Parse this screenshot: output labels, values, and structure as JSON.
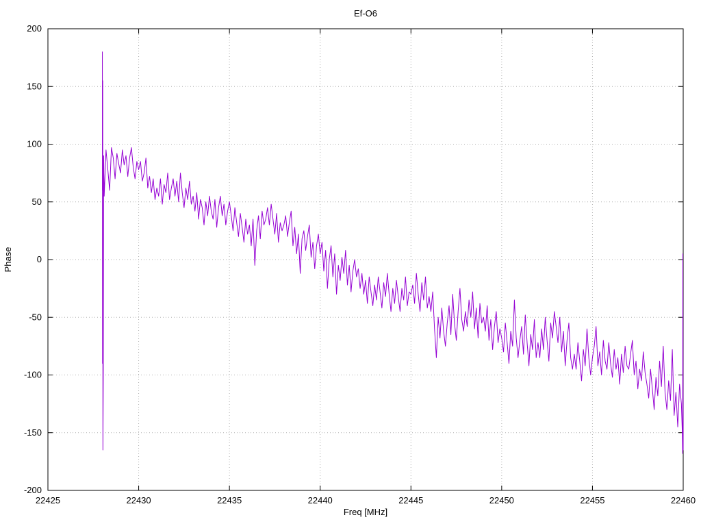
{
  "chart_data": {
    "type": "line",
    "title": "Ef-O6",
    "xlabel": "Freq [MHz]",
    "ylabel": "Phase",
    "xlim": [
      22425,
      22460
    ],
    "ylim": [
      -200,
      200
    ],
    "x_ticks": [
      22425,
      22430,
      22435,
      22440,
      22445,
      22450,
      22455,
      22460
    ],
    "y_ticks": [
      -200,
      -150,
      -100,
      -50,
      0,
      50,
      100,
      150,
      200
    ],
    "grid": true,
    "legend": "none",
    "line_color": "#9400d3",
    "spike_start": [
      [
        22428.0,
        60
      ],
      [
        22428.0,
        180
      ],
      [
        22428.01,
        -90
      ],
      [
        22428.02,
        155
      ],
      [
        22428.03,
        -165
      ],
      [
        22428.05,
        -95
      ],
      [
        22428.07,
        90
      ]
    ],
    "series": {
      "name": "phase",
      "x_start": 22428.1,
      "x_step": 0.1,
      "values": [
        55,
        95,
        78,
        60,
        97,
        88,
        70,
        92,
        83,
        75,
        95,
        82,
        90,
        72,
        88,
        97,
        80,
        70,
        85,
        78,
        85,
        68,
        75,
        88,
        62,
        72,
        58,
        70,
        52,
        62,
        55,
        70,
        48,
        65,
        58,
        75,
        52,
        62,
        70,
        55,
        68,
        50,
        75,
        58,
        45,
        62,
        52,
        68,
        48,
        55,
        42,
        58,
        35,
        52,
        45,
        30,
        50,
        38,
        55,
        42,
        35,
        52,
        28,
        45,
        55,
        38,
        48,
        30,
        42,
        50,
        38,
        25,
        45,
        32,
        20,
        40,
        28,
        15,
        35,
        22,
        30,
        12,
        35,
        -5,
        25,
        38,
        18,
        42,
        30,
        35,
        45,
        30,
        48,
        35,
        22,
        40,
        15,
        32,
        25,
        30,
        38,
        20,
        32,
        42,
        12,
        28,
        5,
        22,
        -12,
        18,
        25,
        8,
        20,
        30,
        2,
        15,
        -8,
        12,
        22,
        5,
        15,
        -10,
        8,
        -25,
        0,
        12,
        -15,
        5,
        -30,
        -5,
        -18,
        2,
        -12,
        8,
        -22,
        -5,
        -28,
        -10,
        0,
        -15,
        -8,
        -25,
        -12,
        -30,
        -18,
        -38,
        -15,
        -28,
        -40,
        -22,
        -35,
        -15,
        -28,
        -42,
        -20,
        -32,
        -12,
        -30,
        -45,
        -25,
        -38,
        -18,
        -32,
        -45,
        -25,
        -35,
        -15,
        -40,
        -28,
        -30,
        -22,
        -38,
        -12,
        -30,
        -45,
        -20,
        -35,
        -15,
        -42,
        -32,
        -45,
        -28,
        -60,
        -85,
        -50,
        -68,
        -42,
        -62,
        -75,
        -55,
        -40,
        -65,
        -30,
        -55,
        -70,
        -45,
        -25,
        -52,
        -62,
        -45,
        -58,
        -35,
        -50,
        -28,
        -60,
        -42,
        -68,
        -38,
        -55,
        -50,
        -62,
        -40,
        -70,
        -52,
        -78,
        -58,
        -45,
        -72,
        -60,
        -68,
        -80,
        -55,
        -72,
        -90,
        -62,
        -75,
        -35,
        -68,
        -85,
        -70,
        -58,
        -82,
        -48,
        -72,
        -92,
        -65,
        -78,
        -52,
        -85,
        -72,
        -85,
        -60,
        -78,
        -50,
        -70,
        -88,
        -55,
        -68,
        -45,
        -58,
        -72,
        -50,
        -80,
        -62,
        -92,
        -70,
        -55,
        -85,
        -95,
        -82,
        -95,
        -72,
        -88,
        -105,
        -78,
        -92,
        -60,
        -85,
        -100,
        -85,
        -75,
        -58,
        -92,
        -80,
        -100,
        -70,
        -88,
        -95,
        -72,
        -90,
        -102,
        -78,
        -95,
        -85,
        -108,
        -82,
        -98,
        -75,
        -92,
        -95,
        -82,
        -70,
        -100,
        -88,
        -112,
        -95,
        -105,
        -80,
        -98,
        -108,
        -120,
        -95,
        -112,
        -130,
        -102,
        -118,
        -88,
        -110,
        -75,
        -115,
        -130,
        -105,
        -122,
        -78,
        -135,
        -115,
        -145,
        -108,
        -125
      ]
    },
    "spike_end": [
      [
        22459.95,
        -150
      ],
      [
        22459.97,
        -168
      ],
      [
        22459.98,
        5
      ],
      [
        22460.0,
        -165
      ]
    ]
  }
}
